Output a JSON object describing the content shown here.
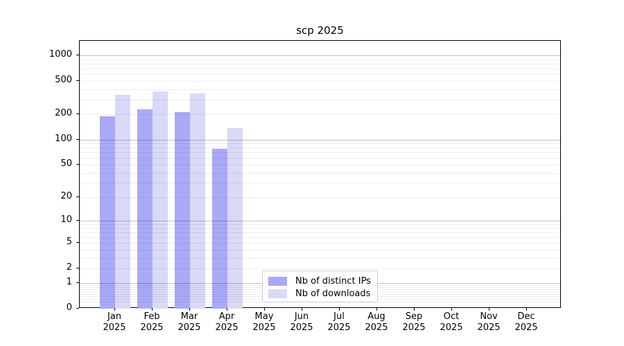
{
  "chart_data": {
    "type": "bar",
    "title": "scp 2025",
    "categories": [
      "Jan",
      "Feb",
      "Mar",
      "Apr",
      "May",
      "Jun",
      "Jul",
      "Aug",
      "Sep",
      "Oct",
      "Nov",
      "Dec"
    ],
    "x_tick_year_line": "2025",
    "series": [
      {
        "name": "Nb of distinct IPs",
        "color": "#a9a9f8",
        "values": [
          190,
          230,
          215,
          77,
          null,
          null,
          null,
          null,
          null,
          null,
          null,
          null
        ]
      },
      {
        "name": "Nb of downloads",
        "color": "#d9d9f8",
        "values": [
          345,
          375,
          355,
          137,
          null,
          null,
          null,
          null,
          null,
          null,
          null,
          null
        ]
      }
    ],
    "xlabel": "",
    "ylabel": "",
    "y_ticks": [
      1000,
      500,
      200,
      100,
      50,
      20,
      10,
      5,
      2,
      1,
      0
    ],
    "y_major_gridlines": [
      1,
      10,
      100,
      1000
    ],
    "y_scale": "log1p",
    "ylim": [
      0,
      1500
    ],
    "grid": "horizontal",
    "legend_position": "inside-bottom-center",
    "colors": {
      "grid_major": "rgba(0,0,0,0.24)",
      "grid_minor": "rgba(0,0,0,0.07)",
      "axis": "#000000",
      "background": "#ffffff"
    }
  }
}
